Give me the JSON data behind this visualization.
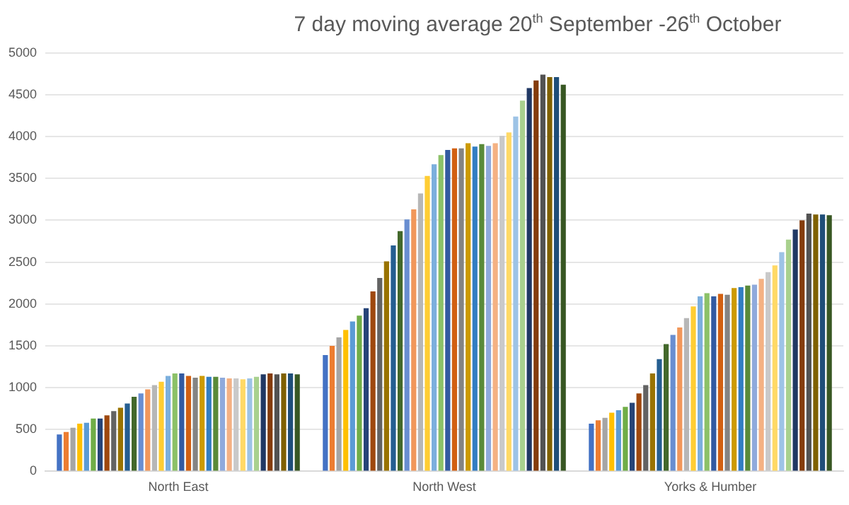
{
  "chart_data": {
    "type": "bar",
    "title": "7 day moving average 20$^{th}$ September -26$^{th}$ October",
    "categories": [
      "North East",
      "North West",
      "Yorks & Humber"
    ],
    "ylim": [
      0,
      5000
    ],
    "yticks": [
      0,
      500,
      1000,
      1500,
      2000,
      2500,
      3000,
      3500,
      4000,
      4500,
      5000
    ],
    "grid": "y",
    "legend": false,
    "series": [
      {
        "color": "#4472c4",
        "values": [
          440,
          1390,
          570
        ]
      },
      {
        "color": "#ed7d31",
        "values": [
          470,
          1500,
          610
        ]
      },
      {
        "color": "#a5a5a5",
        "values": [
          520,
          1600,
          640
        ]
      },
      {
        "color": "#ffc000",
        "values": [
          570,
          1690,
          700
        ]
      },
      {
        "color": "#5b9bd5",
        "values": [
          580,
          1790,
          730
        ]
      },
      {
        "color": "#70ad47",
        "values": [
          630,
          1860,
          770
        ]
      },
      {
        "color": "#264478",
        "values": [
          630,
          1950,
          820
        ]
      },
      {
        "color": "#9e480e",
        "values": [
          670,
          2150,
          930
        ]
      },
      {
        "color": "#636363",
        "values": [
          720,
          2310,
          1030
        ]
      },
      {
        "color": "#997300",
        "values": [
          760,
          2510,
          1170
        ]
      },
      {
        "color": "#255e91",
        "values": [
          810,
          2700,
          1340
        ]
      },
      {
        "color": "#43682b",
        "values": [
          890,
          2870,
          1520
        ]
      },
      {
        "color": "#698ed0",
        "values": [
          930,
          3010,
          1630
        ]
      },
      {
        "color": "#f1975a",
        "values": [
          980,
          3130,
          1720
        ]
      },
      {
        "color": "#b7b7b7",
        "values": [
          1030,
          3320,
          1830
        ]
      },
      {
        "color": "#ffcd33",
        "values": [
          1070,
          3530,
          1970
        ]
      },
      {
        "color": "#7cafdd",
        "values": [
          1140,
          3670,
          2090
        ]
      },
      {
        "color": "#8cc168",
        "values": [
          1170,
          3780,
          2130
        ]
      },
      {
        "color": "#335aa1",
        "values": [
          1170,
          3840,
          2090
        ]
      },
      {
        "color": "#d26012",
        "values": [
          1140,
          3860,
          2120
        ]
      },
      {
        "color": "#848484",
        "values": [
          1120,
          3860,
          2110
        ]
      },
      {
        "color": "#cc9a00",
        "values": [
          1140,
          3920,
          2190
        ]
      },
      {
        "color": "#327dc2",
        "values": [
          1130,
          3880,
          2200
        ]
      },
      {
        "color": "#5a8a39",
        "values": [
          1130,
          3910,
          2220
        ]
      },
      {
        "color": "#8faadc",
        "values": [
          1120,
          3890,
          2230
        ]
      },
      {
        "color": "#f4b183",
        "values": [
          1110,
          3920,
          2300
        ]
      },
      {
        "color": "#c9c9c9",
        "values": [
          1110,
          4010,
          2380
        ]
      },
      {
        "color": "#ffd966",
        "values": [
          1100,
          4050,
          2460
        ]
      },
      {
        "color": "#9dc3e6",
        "values": [
          1110,
          4240,
          2620
        ]
      },
      {
        "color": "#a9d18e",
        "values": [
          1130,
          4430,
          2770
        ]
      },
      {
        "color": "#203864",
        "values": [
          1160,
          4580,
          2890
        ]
      },
      {
        "color": "#843c0c",
        "values": [
          1170,
          4670,
          3000
        ]
      },
      {
        "color": "#525252",
        "values": [
          1160,
          4740,
          3080
        ]
      },
      {
        "color": "#7f6000",
        "values": [
          1170,
          4710,
          3070
        ]
      },
      {
        "color": "#1f4e79",
        "values": [
          1170,
          4710,
          3070
        ]
      },
      {
        "color": "#385723",
        "values": [
          1160,
          4620,
          3060
        ]
      }
    ]
  }
}
